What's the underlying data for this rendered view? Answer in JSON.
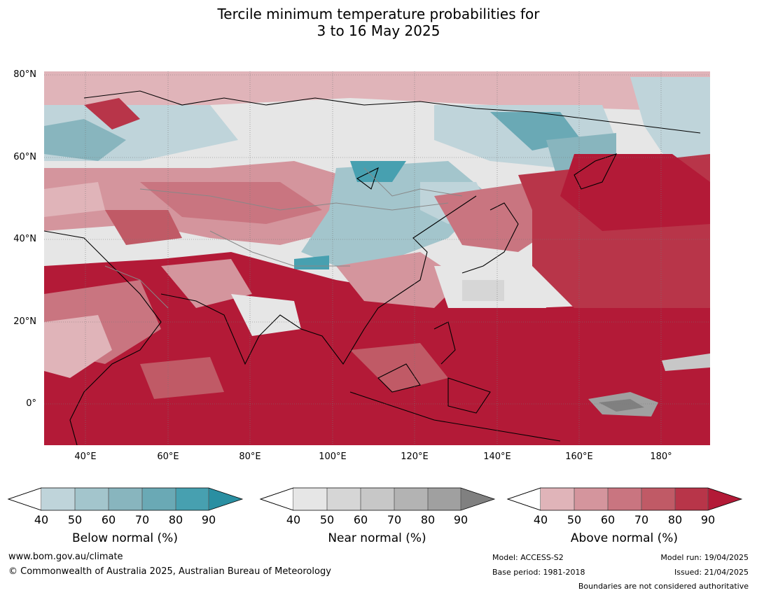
{
  "title": {
    "line1": "Tercile minimum temperature probabilities for",
    "line2": "3 to 16 May 2025"
  },
  "axes": {
    "lat_labels": [
      "80°N",
      "60°N",
      "40°N",
      "20°N",
      "0°"
    ],
    "lon_labels": [
      "40°E",
      "60°E",
      "80°E",
      "100°E",
      "120°E",
      "140°E",
      "160°E",
      "180°"
    ]
  },
  "colorbars": [
    {
      "label": "Below normal (%)",
      "ticks": [
        "40",
        "50",
        "60",
        "70",
        "80",
        "90"
      ],
      "colors": [
        "#bfd4da",
        "#a3c5cc",
        "#88b5be",
        "#6aa9b5",
        "#47a0b0",
        "#2a8fa2"
      ]
    },
    {
      "label": "Near normal (%)",
      "ticks": [
        "40",
        "50",
        "60",
        "70",
        "80",
        "90"
      ],
      "colors": [
        "#e6e6e6",
        "#d6d6d6",
        "#c7c7c7",
        "#b3b3b3",
        "#a0a0a0",
        "#808080"
      ]
    },
    {
      "label": "Above normal (%)",
      "ticks": [
        "40",
        "50",
        "60",
        "70",
        "80",
        "90"
      ],
      "colors": [
        "#e0b4b9",
        "#d4959d",
        "#c97580",
        "#c05a66",
        "#b83549",
        "#b31a37"
      ]
    }
  ],
  "footer": {
    "url": "www.bom.gov.au/climate",
    "copyright": "© Commonwealth of Australia 2025, Australian Bureau of Meteorology",
    "model": "Model: ACCESS-S2",
    "base_period": "Base period: 1981-2018",
    "model_run": "Model run: 19/04/2025",
    "issued": "Issued: 21/04/2025",
    "boundaries": "Boundaries are not considered authoritative"
  }
}
